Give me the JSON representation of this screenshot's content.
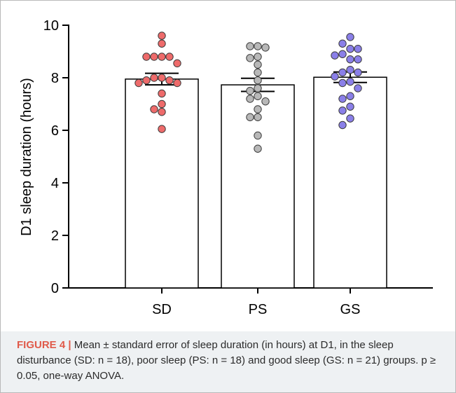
{
  "chart_data": {
    "type": "bar",
    "ylabel": "D1 sleep duration (hours)",
    "xlabel": "",
    "ylim": [
      0,
      10
    ],
    "yticks": [
      0,
      2,
      4,
      6,
      8,
      10
    ],
    "categories": [
      "SD",
      "PS",
      "GS"
    ],
    "means": [
      7.95,
      7.73,
      8.02
    ],
    "sem": [
      0.22,
      0.25,
      0.2
    ],
    "point_colors": [
      "#ee6b6b",
      "#b8b8b8",
      "#8a7fe8"
    ],
    "points": [
      [
        9.6,
        9.3,
        8.8,
        8.8,
        8.8,
        8.8,
        8.55,
        8.0,
        8.0,
        7.9,
        7.9,
        7.8,
        7.8,
        7.4,
        7.0,
        6.8,
        6.7,
        6.05
      ],
      [
        9.2,
        9.2,
        9.15,
        8.8,
        8.75,
        8.5,
        8.2,
        7.9,
        7.6,
        7.5,
        7.3,
        7.2,
        7.1,
        6.8,
        6.5,
        6.5,
        5.8,
        5.3
      ],
      [
        9.55,
        9.3,
        9.1,
        9.1,
        8.9,
        8.85,
        8.7,
        8.7,
        8.3,
        8.2,
        8.2,
        8.05,
        7.85,
        7.8,
        7.6,
        7.3,
        7.2,
        6.9,
        6.75,
        6.45,
        6.2
      ]
    ]
  },
  "caption": {
    "figure_label": "FIGURE 4",
    "separator": "|",
    "text": "Mean ± standard error of sleep duration (in hours) at D1, in the sleep disturbance (SD: n = 18), poor sleep (PS: n = 18) and good sleep (GS: n = 21) groups. p ≥ 0.05, one-way ANOVA."
  }
}
